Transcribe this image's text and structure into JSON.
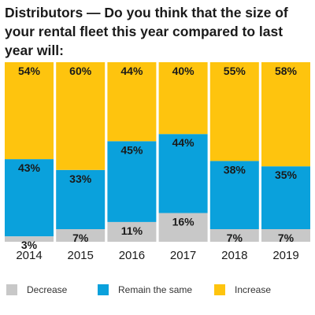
{
  "title": {
    "bold": "Distributors",
    "rest": " — Do you think that the size of your rental fleet this year compared to last year will:"
  },
  "colors": {
    "decrease": "#c8c8c8",
    "same": "#0aa1dc",
    "increase": "#fec40e"
  },
  "legend": [
    {
      "key": "decrease",
      "label": "Decrease"
    },
    {
      "key": "same",
      "label": "Remain the same"
    },
    {
      "key": "increase",
      "label": "Increase"
    }
  ],
  "chart_data": {
    "type": "bar",
    "stacked": true,
    "categories": [
      "2014",
      "2015",
      "2016",
      "2017",
      "2018",
      "2019"
    ],
    "series": [
      {
        "name": "Decrease",
        "key": "decrease",
        "values": [
          3,
          7,
          11,
          16,
          7,
          7
        ],
        "labels": [
          "3%",
          "7%",
          "11%",
          "16%",
          "7%",
          "7%"
        ]
      },
      {
        "name": "Remain the same",
        "key": "same",
        "values": [
          43,
          33,
          45,
          44,
          38,
          35
        ],
        "labels": [
          "43%",
          "33%",
          "45%",
          "44%",
          "38%",
          "35%"
        ]
      },
      {
        "name": "Increase",
        "key": "increase",
        "values": [
          54,
          60,
          44,
          40,
          55,
          58
        ],
        "labels": [
          "54%",
          "60%",
          "44%",
          "40%",
          "55%",
          "58%"
        ]
      }
    ],
    "ylim": [
      0,
      100
    ],
    "legend_position": "bottom"
  }
}
